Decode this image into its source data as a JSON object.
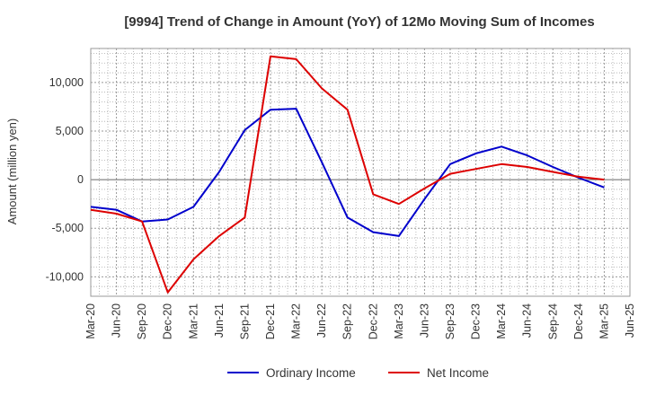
{
  "chart_data": {
    "type": "line",
    "title": "[9994]  Trend of Change in Amount (YoY) of 12Mo Moving Sum of Incomes",
    "xlabel": "",
    "ylabel": "Amount (million yen)",
    "categories": [
      "Mar-20",
      "Jun-20",
      "Sep-20",
      "Dec-20",
      "Mar-21",
      "Jun-21",
      "Sep-21",
      "Dec-21",
      "Mar-22",
      "Jun-22",
      "Sep-22",
      "Dec-22",
      "Mar-23",
      "Jun-23",
      "Sep-23",
      "Dec-23",
      "Mar-24",
      "Jun-24",
      "Sep-24",
      "Dec-24",
      "Mar-25",
      "Jun-25"
    ],
    "ylim": [
      -12000,
      13500
    ],
    "yticks": [
      -10000,
      -5000,
      0,
      5000,
      10000
    ],
    "ytick_labels": [
      "-10,000",
      "-5,000",
      "0",
      "5,000",
      "10,000"
    ],
    "grid": true,
    "legend_position": "bottom",
    "series": [
      {
        "name": "Ordinary Income",
        "color": "#0000cc",
        "values": [
          -2800,
          -3100,
          -4300,
          -4100,
          -2800,
          800,
          5100,
          7200,
          7300,
          1800,
          -3900,
          -5400,
          -5800,
          -2000,
          1600,
          2700,
          3400,
          2500,
          1300,
          200,
          -800,
          null
        ]
      },
      {
        "name": "Net Income",
        "color": "#dd0000",
        "values": [
          -3100,
          -3500,
          -4300,
          -11600,
          -8200,
          -5800,
          -3900,
          12700,
          12400,
          9400,
          7200,
          -1500,
          -2500,
          -900,
          600,
          1100,
          1600,
          1300,
          800,
          300,
          0,
          null
        ]
      }
    ]
  }
}
